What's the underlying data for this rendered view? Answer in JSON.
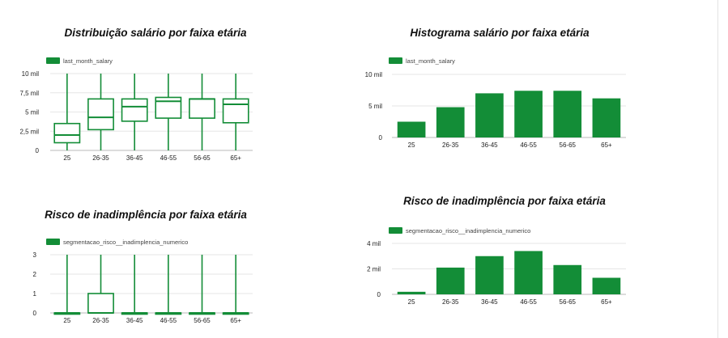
{
  "colors": {
    "series": "#138d37"
  },
  "chart_data": [
    {
      "type": "boxplot",
      "title": "Distribuição salário por faixa etária",
      "legend": [
        "last_month_salary"
      ],
      "legend_position": "top-left",
      "categories": [
        "25",
        "26-35",
        "36-45",
        "46-55",
        "56-65",
        "65+"
      ],
      "y_ticks": [
        "0",
        "2,5 mil",
        "5 mil",
        "7,5 mil",
        "10 mil"
      ],
      "ylim": [
        0,
        10000
      ],
      "grid": true,
      "boxes": [
        {
          "min": 0,
          "q1": 1000,
          "median": 2000,
          "q3": 3500,
          "max": 10000
        },
        {
          "min": 0,
          "q1": 2700,
          "median": 4300,
          "q3": 6700,
          "max": 10000
        },
        {
          "min": 0,
          "q1": 3800,
          "median": 5700,
          "q3": 6700,
          "max": 10000
        },
        {
          "min": 0,
          "q1": 4200,
          "median": 6400,
          "q3": 6900,
          "max": 10000
        },
        {
          "min": 0,
          "q1": 4200,
          "median": 6700,
          "q3": 6700,
          "max": 10000
        },
        {
          "min": 0,
          "q1": 3600,
          "median": 6000,
          "q3": 6700,
          "max": 10000
        }
      ]
    },
    {
      "type": "bar",
      "title": "Histograma salário por faixa etária",
      "legend": [
        "last_month_salary"
      ],
      "legend_position": "top-left",
      "categories": [
        "25",
        "26-35",
        "36-45",
        "46-55",
        "56-65",
        "65+"
      ],
      "values": [
        2500,
        4800,
        7000,
        7400,
        7400,
        6200
      ],
      "y_ticks": [
        "0",
        "5 mil",
        "10 mil"
      ],
      "ylim": [
        0,
        10000
      ],
      "grid": true
    },
    {
      "type": "boxplot",
      "title": "Risco de inadimplência por faixa etária",
      "legend": [
        "segmentacao_risco__inadimplencia_numerico"
      ],
      "legend_position": "top-left",
      "categories": [
        "25",
        "26-35",
        "36-45",
        "46-55",
        "56-65",
        "65+"
      ],
      "y_ticks": [
        "0",
        "1",
        "2",
        "3"
      ],
      "ylim": [
        0,
        3
      ],
      "grid": true,
      "boxes": [
        {
          "min": 0,
          "q1": 0,
          "median": 0,
          "q3": 0,
          "max": 3
        },
        {
          "min": 0,
          "q1": 0,
          "median": 0,
          "q3": 1,
          "max": 3
        },
        {
          "min": 0,
          "q1": 0,
          "median": 0,
          "q3": 0,
          "max": 3
        },
        {
          "min": 0,
          "q1": 0,
          "median": 0,
          "q3": 0,
          "max": 3
        },
        {
          "min": 0,
          "q1": 0,
          "median": 0,
          "q3": 0,
          "max": 3
        },
        {
          "min": 0,
          "q1": 0,
          "median": 0,
          "q3": 0,
          "max": 3
        }
      ]
    },
    {
      "type": "bar",
      "title": "Risco de inadimplência por faixa etária",
      "legend": [
        "segmentacao_risco__inadimplencia_numerico"
      ],
      "legend_position": "top-left",
      "categories": [
        "25",
        "26-35",
        "36-45",
        "46-55",
        "56-65",
        "65+"
      ],
      "values": [
        200,
        2100,
        3000,
        3400,
        2300,
        1300
      ],
      "y_ticks": [
        "0",
        "2 mil",
        "4 mil"
      ],
      "ylim": [
        0,
        4000
      ],
      "grid": true
    }
  ]
}
